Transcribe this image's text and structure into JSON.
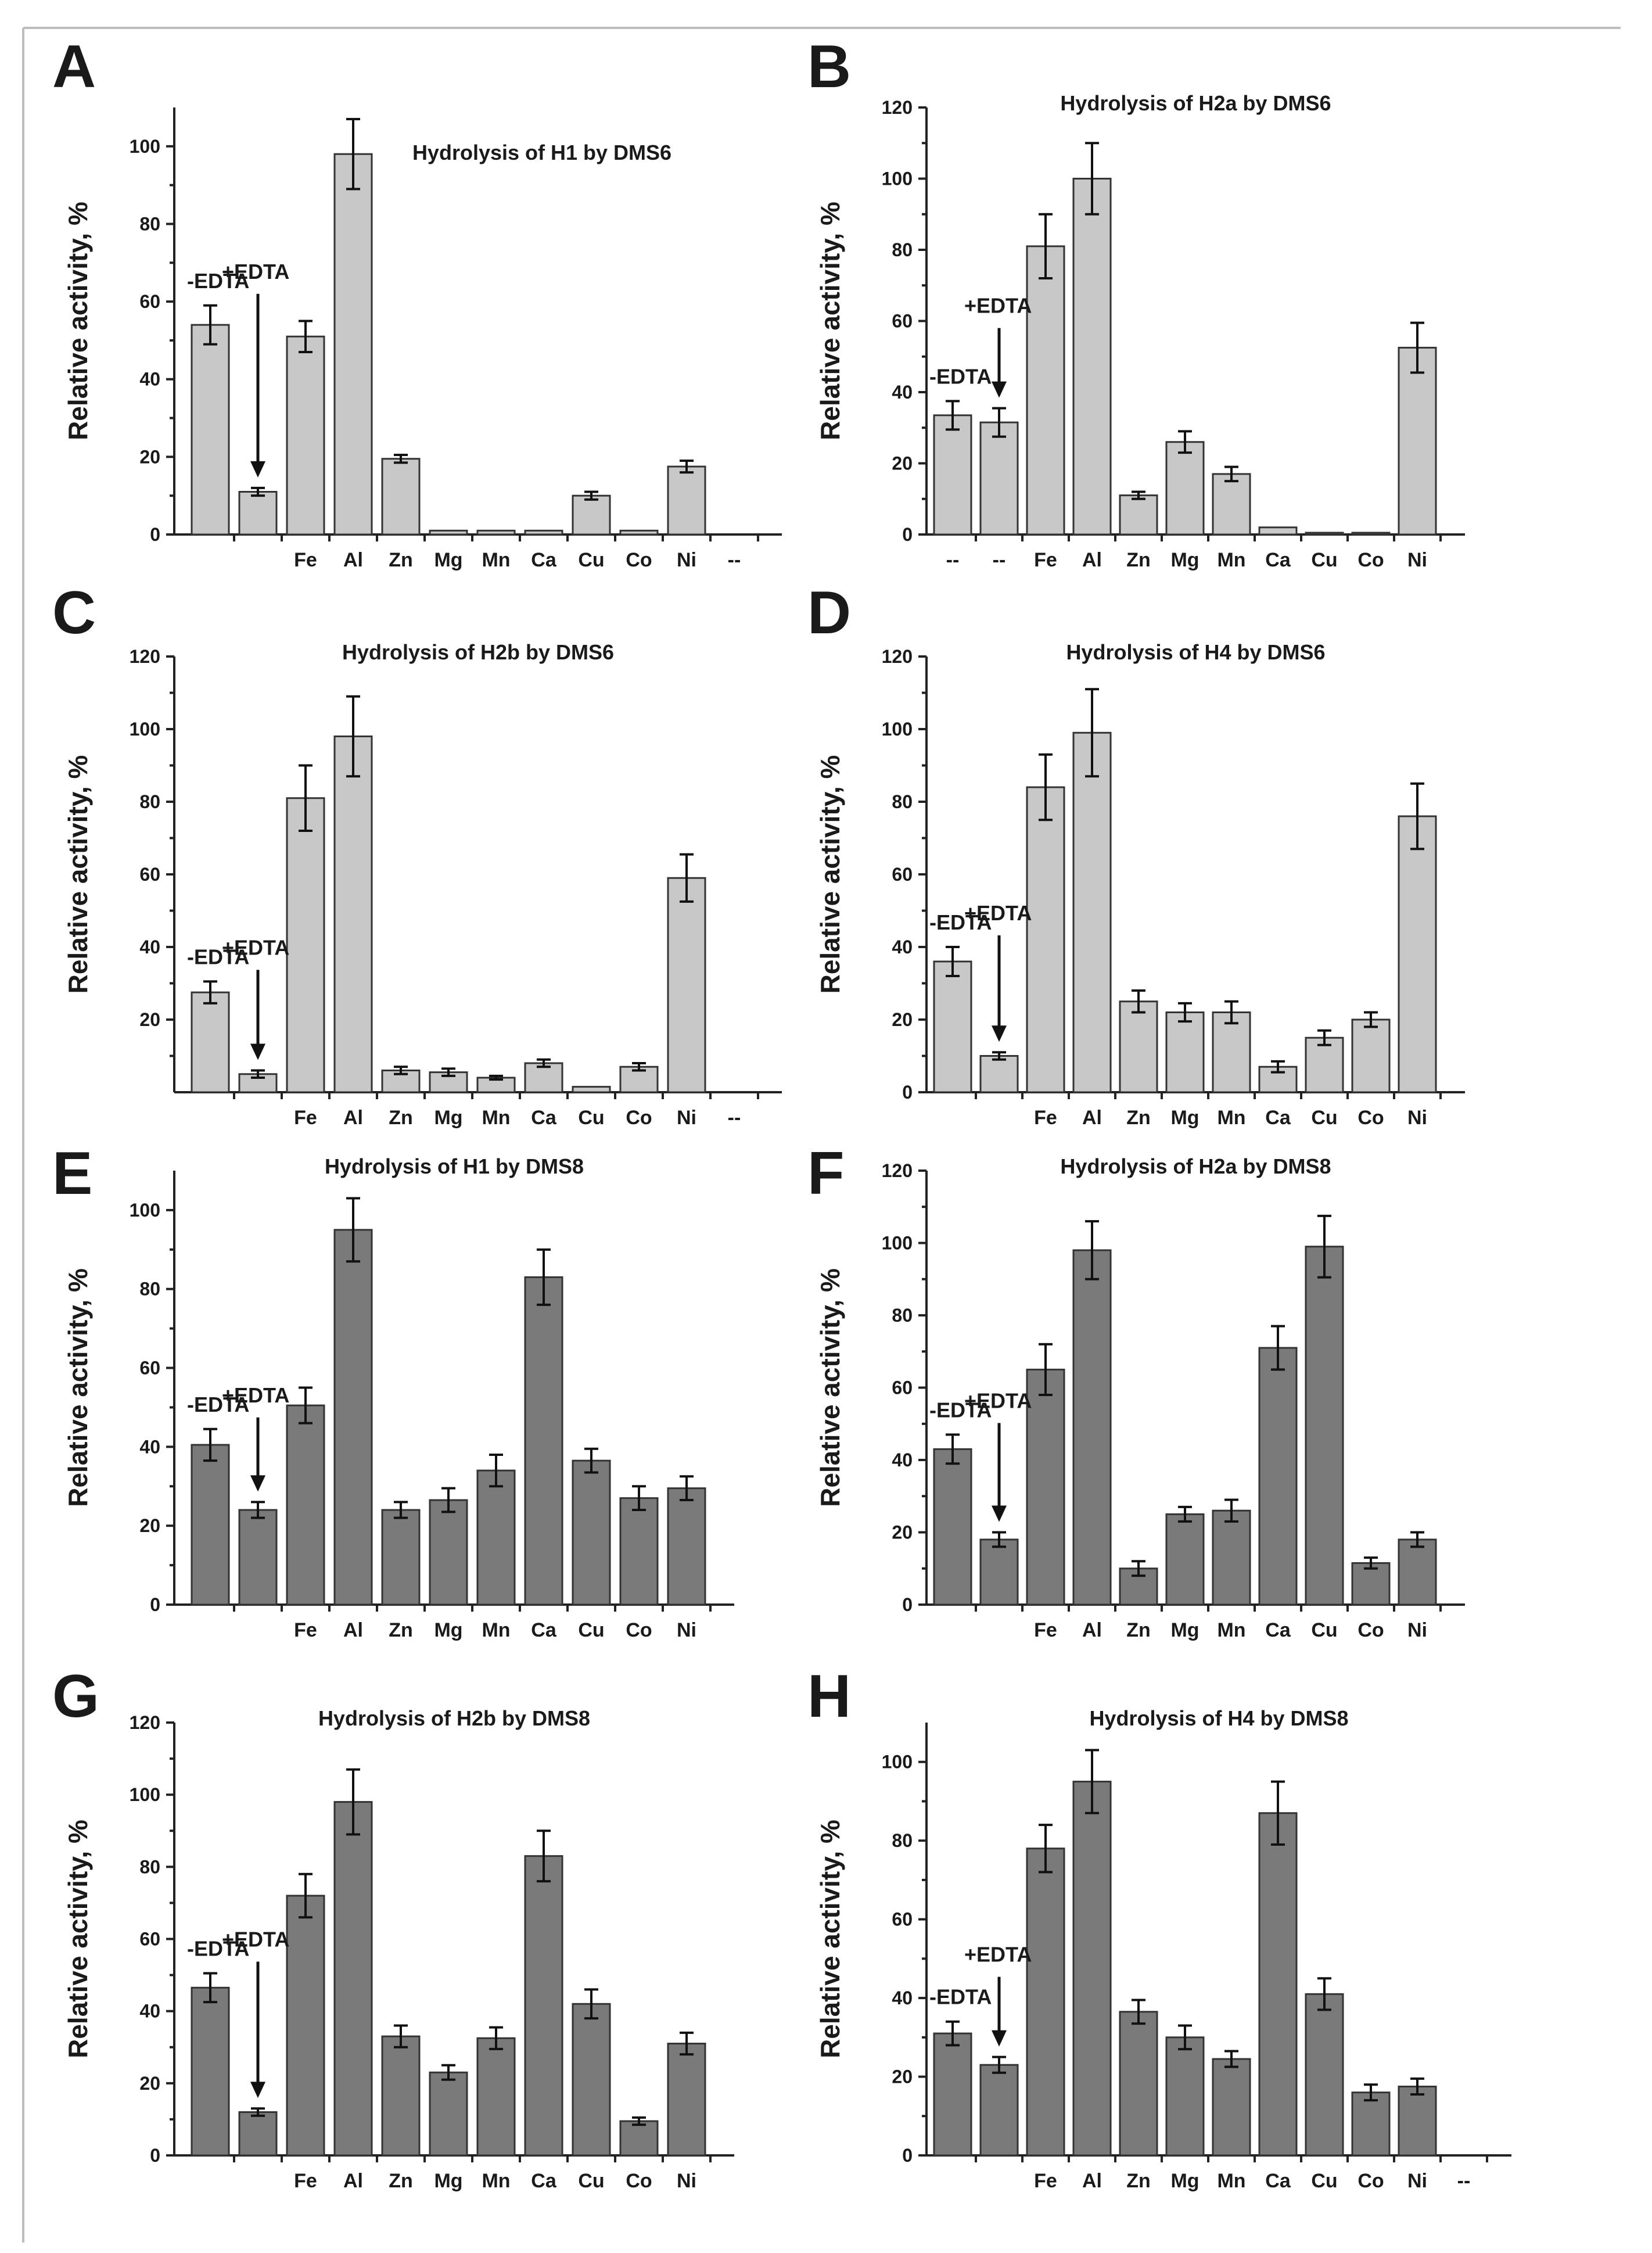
{
  "colors": {
    "light_bar": "#c8c8c8",
    "dark_bar": "#7a7a7a",
    "bar_edge": "#333333",
    "text": "#1a1a1a"
  },
  "chart_data": [
    {
      "panel": "A",
      "type": "bar",
      "title": "Hydrolysis of H1 by DMS6",
      "ylabel": "Relative activity, %",
      "ylim": [
        0,
        110
      ],
      "yticks": [
        "0",
        "20",
        "40",
        "60",
        "80",
        "100"
      ],
      "shade": "light",
      "categories": [
        "",
        "",
        "Fe",
        "Al",
        "Zn",
        "Mg",
        "Mn",
        "Ca",
        "Cu",
        "Co",
        "Ni",
        "--"
      ],
      "values": [
        54,
        11,
        51,
        98,
        19.5,
        1,
        1,
        1,
        10,
        1,
        17.5,
        null
      ],
      "errors": [
        5,
        1,
        4,
        9,
        1,
        0,
        0,
        0,
        1,
        0,
        1.5,
        null
      ],
      "annotations": {
        "minus_edta": "-EDTA",
        "plus_edta": "+EDTA"
      }
    },
    {
      "panel": "B",
      "type": "bar",
      "title": "Hydrolysis of H2a by DMS6",
      "ylabel": "Relative activity, %",
      "ylim": [
        0,
        120
      ],
      "yticks": [
        "0",
        "20",
        "40",
        "60",
        "80",
        "100",
        "120"
      ],
      "shade": "light",
      "categories": [
        "--",
        "--",
        "Fe",
        "Al",
        "Zn",
        "Mg",
        "Mn",
        "Ca",
        "Cu",
        "Co",
        "Ni"
      ],
      "values": [
        33.5,
        31.5,
        81,
        100,
        11,
        26,
        17,
        2,
        0.5,
        0.5,
        52.5
      ],
      "errors": [
        4,
        4,
        9,
        10,
        1,
        3,
        2,
        0,
        0,
        0,
        7
      ],
      "annotations": {
        "minus_edta": "-EDTA",
        "plus_edta": "+EDTA"
      }
    },
    {
      "panel": "C",
      "type": "bar",
      "title": "Hydrolysis of H2b by DMS6",
      "ylabel": "Relative activity, %",
      "ylim": [
        0,
        120
      ],
      "yticks": [
        "20",
        "40",
        "60",
        "80",
        "100",
        "120"
      ],
      "shade": "light",
      "categories": [
        "",
        "",
        "Fe",
        "Al",
        "Zn",
        "Mg",
        "Mn",
        "Ca",
        "Cu",
        "Co",
        "Ni",
        "--"
      ],
      "values": [
        27.5,
        5,
        81,
        98,
        6,
        5.5,
        4,
        8,
        1.5,
        7,
        59,
        null
      ],
      "errors": [
        3,
        1,
        9,
        11,
        1,
        1,
        0.5,
        1,
        0,
        1,
        6.5,
        null
      ],
      "annotations": {
        "minus_edta": "-EDTA",
        "plus_edta": "+EDTA"
      }
    },
    {
      "panel": "D",
      "type": "bar",
      "title": "Hydrolysis of H4 by DMS6",
      "ylabel": "Relative activity, %",
      "ylim": [
        0,
        120
      ],
      "yticks": [
        "0",
        "20",
        "40",
        "60",
        "80",
        "100",
        "120"
      ],
      "shade": "light",
      "categories": [
        "",
        "",
        "Fe",
        "Al",
        "Zn",
        "Mg",
        "Mn",
        "Ca",
        "Cu",
        "Co",
        "Ni"
      ],
      "values": [
        36,
        10,
        84,
        99,
        25,
        22,
        22,
        7,
        15,
        20,
        76
      ],
      "errors": [
        4,
        1,
        9,
        12,
        3,
        2.5,
        3,
        1.5,
        2,
        2,
        9
      ],
      "annotations": {
        "minus_edta": "-EDTA",
        "plus_edta": "+EDTA"
      }
    },
    {
      "panel": "E",
      "type": "bar",
      "title": "Hydrolysis of H1 by DMS8",
      "ylabel": "Relative activity, %",
      "ylim": [
        0,
        110
      ],
      "yticks": [
        "0",
        "20",
        "40",
        "60",
        "80",
        "100"
      ],
      "shade": "dark",
      "categories": [
        "",
        "",
        "Fe",
        "Al",
        "Zn",
        "Mg",
        "Mn",
        "Ca",
        "Cu",
        "Co",
        "Ni"
      ],
      "values": [
        40.5,
        24,
        50.5,
        95,
        24,
        26.5,
        34,
        83,
        36.5,
        27,
        29.5
      ],
      "errors": [
        4,
        2,
        4.5,
        8,
        2,
        3,
        4,
        7,
        3,
        3,
        3
      ],
      "annotations": {
        "minus_edta": "-EDTA",
        "plus_edta": "+EDTA"
      }
    },
    {
      "panel": "F",
      "type": "bar",
      "title": "Hydrolysis of H2a by DMS8",
      "ylabel": "Relative activity, %",
      "ylim": [
        0,
        120
      ],
      "yticks": [
        "0",
        "20",
        "40",
        "60",
        "80",
        "100",
        "120"
      ],
      "shade": "dark",
      "categories": [
        "",
        "",
        "Fe",
        "Al",
        "Zn",
        "Mg",
        "Mn",
        "Ca",
        "Cu",
        "Co",
        "Ni"
      ],
      "values": [
        43,
        18,
        65,
        98,
        10,
        25,
        26,
        71,
        99,
        11.5,
        18
      ],
      "errors": [
        4,
        2,
        7,
        8,
        2,
        2,
        3,
        6,
        8.5,
        1.5,
        2
      ],
      "annotations": {
        "minus_edta": "-EDTA",
        "plus_edta": "+EDTA"
      }
    },
    {
      "panel": "G",
      "type": "bar",
      "title": "Hydrolysis of H2b by DMS8",
      "ylabel": "Relative activity, %",
      "ylim": [
        0,
        120
      ],
      "yticks": [
        "0",
        "20",
        "40",
        "60",
        "80",
        "100",
        "120"
      ],
      "shade": "dark",
      "categories": [
        "",
        "",
        "Fe",
        "Al",
        "Zn",
        "Mg",
        "Mn",
        "Ca",
        "Cu",
        "Co",
        "Ni"
      ],
      "values": [
        46.5,
        12,
        72,
        98,
        33,
        23,
        32.5,
        83,
        42,
        9.5,
        31
      ],
      "errors": [
        4,
        1,
        6,
        9,
        3,
        2,
        3,
        7,
        4,
        1,
        3
      ],
      "annotations": {
        "minus_edta": "-EDTA",
        "plus_edta": "+EDTA"
      }
    },
    {
      "panel": "H",
      "type": "bar",
      "title": "Hydrolysis of H4 by DMS8",
      "ylabel": "Relative activity, %",
      "ylim": [
        0,
        110
      ],
      "yticks": [
        "0",
        "20",
        "40",
        "60",
        "80",
        "100"
      ],
      "shade": "dark",
      "categories": [
        "",
        "",
        "Fe",
        "Al",
        "Zn",
        "Mg",
        "Mn",
        "Ca",
        "Cu",
        "Co",
        "Ni",
        "--"
      ],
      "values": [
        31,
        23,
        78,
        95,
        36.5,
        30,
        24.5,
        87,
        41,
        16,
        17.5,
        null
      ],
      "errors": [
        3,
        2,
        6,
        8,
        3,
        3,
        2,
        8,
        4,
        2,
        2,
        null
      ],
      "annotations": {
        "minus_edta": "-EDTA",
        "plus_edta": "+EDTA"
      }
    }
  ]
}
